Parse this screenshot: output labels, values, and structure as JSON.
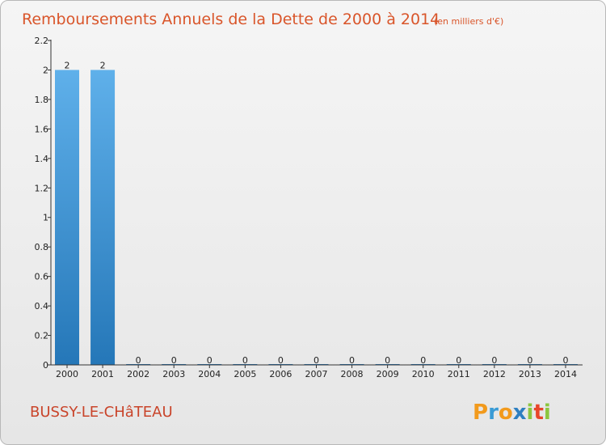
{
  "chart_data": {
    "type": "bar",
    "title": "Remboursements Annuels de la Dette de 2000 à 2014",
    "unit_note": "(en milliers d'€)",
    "categories": [
      "2000",
      "2001",
      "2002",
      "2003",
      "2004",
      "2005",
      "2006",
      "2007",
      "2008",
      "2009",
      "2010",
      "2011",
      "2012",
      "2013",
      "2014"
    ],
    "values": [
      2,
      2,
      0,
      0,
      0,
      0,
      0,
      0,
      0,
      0,
      0,
      0,
      0,
      0,
      0
    ],
    "data_labels": [
      "2",
      "2",
      "0",
      "0",
      "0",
      "0",
      "0",
      "0",
      "0",
      "0",
      "0",
      "0",
      "0",
      "0",
      "0"
    ],
    "y_ticks": [
      "0",
      "0.2",
      "0.4",
      "0.6",
      "0.8",
      "1",
      "1.2",
      "1.4",
      "1.6",
      "1.8",
      "2",
      "2.2"
    ],
    "y_tick_values": [
      0,
      0.2,
      0.4,
      0.6,
      0.8,
      1,
      1.2,
      1.4,
      1.6,
      1.8,
      2,
      2.2
    ],
    "ylim": [
      0,
      2.2
    ],
    "xlabel": "",
    "ylabel": "",
    "grid": false,
    "bar_color_top": "#5fb0ea",
    "bar_color_bottom": "#2577b8"
  },
  "footer": {
    "city": "BUSSY-LE-CHâTEAU",
    "brand_letters": [
      "P",
      "r",
      "o",
      "x",
      "i",
      "t",
      "i"
    ],
    "brand_colors": [
      "#f29a1c",
      "#3a9bd5",
      "#f29a1c",
      "#2e7fc1",
      "#8cc63f",
      "#e8462a",
      "#8cc63f"
    ]
  },
  "colors": {
    "title": "#d9552a",
    "city": "#c9442a",
    "axis": "#333333"
  }
}
